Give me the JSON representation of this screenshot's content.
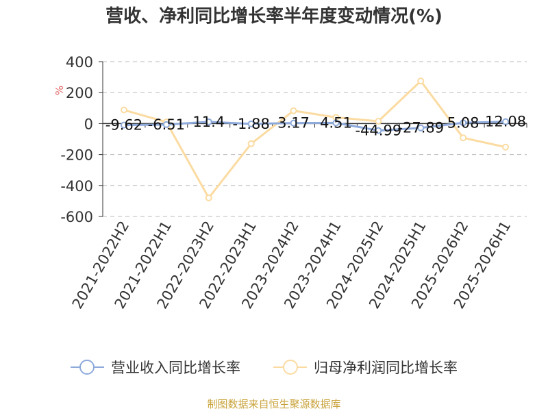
{
  "chart_data": {
    "type": "line",
    "title": "营收、净利同比增长率半年度变动情况(%)",
    "ylabel": "%",
    "categories": [
      "2021-2022H2",
      "2021-2022H1",
      "2022-2023H2",
      "2022-2023H1",
      "2023-2024H2",
      "2023-2024H1",
      "2024-2025H2",
      "2024-2025H1",
      "2025-2026H2",
      "2025-2026H1"
    ],
    "ylim": [
      -600,
      400
    ],
    "yticks": [
      "400",
      "200",
      "0",
      "-200",
      "-400",
      "-600"
    ],
    "grid": true,
    "legend_position": "bottom",
    "series": [
      {
        "name": "营业收入同比增长率",
        "values": [
          -9.62,
          -6.51,
          11.4,
          -1.88,
          3.17,
          4.51,
          -44.99,
          -27.89,
          5.08,
          12.08
        ],
        "labels": [
          "-9.62",
          "-6.51",
          "11.4",
          "-1.88",
          "3.17",
          "4.51",
          "-44.99",
          "-27.89",
          "5.08",
          "12.08"
        ],
        "color": "#8eaadb"
      },
      {
        "name": "归母净利润同比增长率",
        "values": [
          88,
          10,
          -480,
          -130,
          83,
          40,
          15,
          275,
          -92,
          -152
        ],
        "color": "#fbdba1"
      }
    ],
    "axis_color": "#333333",
    "grid_color": "#bbbbbb",
    "unit_color": "#e06666"
  },
  "footer": {
    "source": "制图数据来自恒生聚源数据库",
    "color": "#c9a23a"
  }
}
